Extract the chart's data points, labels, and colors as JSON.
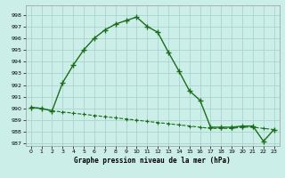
{
  "title": "Graphe pression niveau de la mer (hPa)",
  "background_color": "#cceee8",
  "grid_color": "#aad4ce",
  "line_color": "#1a6e1a",
  "xlim": [
    -0.5,
    23.5
  ],
  "ylim": [
    986.8,
    998.8
  ],
  "yticks": [
    987,
    988,
    989,
    990,
    991,
    992,
    993,
    994,
    995,
    996,
    997,
    998
  ],
  "xticks": [
    0,
    1,
    2,
    3,
    4,
    5,
    6,
    7,
    8,
    9,
    10,
    11,
    12,
    13,
    14,
    15,
    16,
    17,
    18,
    19,
    20,
    21,
    22,
    23
  ],
  "series1_x": [
    0,
    1,
    2,
    3,
    4,
    5,
    6,
    7,
    8,
    9,
    10,
    11,
    12,
    13,
    14,
    15,
    16,
    17,
    18,
    19,
    20,
    21,
    22,
    23
  ],
  "series1_y": [
    990.1,
    990.0,
    989.8,
    989.7,
    989.6,
    989.5,
    989.4,
    989.3,
    989.2,
    989.1,
    989.0,
    988.9,
    988.8,
    988.7,
    988.6,
    988.5,
    988.4,
    988.3,
    988.3,
    988.3,
    988.4,
    988.4,
    988.3,
    988.2
  ],
  "series2_x": [
    0,
    1,
    2,
    3,
    4,
    5,
    6,
    7,
    8,
    9,
    10,
    11,
    12,
    13,
    14,
    15,
    16,
    17,
    18,
    19,
    20,
    21,
    22,
    23
  ],
  "series2_y": [
    990.1,
    990.0,
    989.8,
    992.2,
    993.7,
    995.0,
    996.0,
    996.7,
    997.2,
    997.5,
    997.8,
    997.0,
    996.5,
    994.8,
    993.2,
    991.5,
    990.7,
    988.4,
    988.4,
    988.4,
    988.5,
    988.5,
    987.2,
    988.2
  ]
}
